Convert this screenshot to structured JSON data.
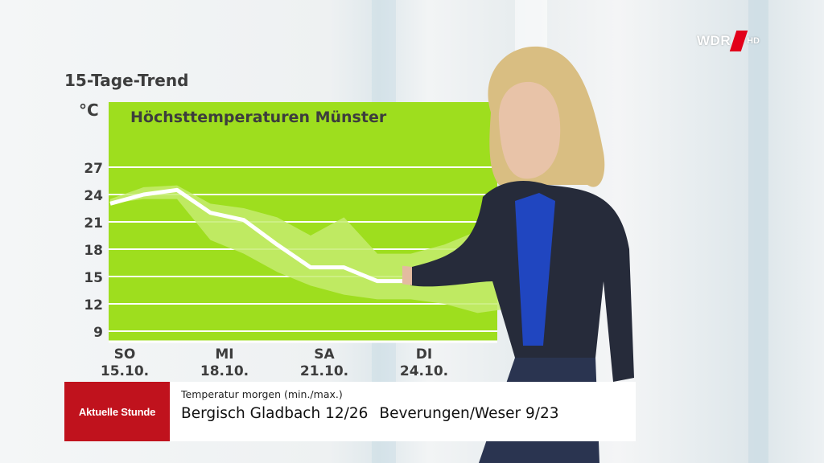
{
  "channel": {
    "logo_text": "WDR",
    "hd_badge": "HD",
    "brand_color": "#e2001a"
  },
  "chart_data": {
    "type": "line",
    "heading": "15-Tage-Trend",
    "title": "Höchsttemperaturen Münster",
    "ylabel": "°C",
    "y_ticks": [
      27,
      24,
      21,
      18,
      15,
      12,
      9
    ],
    "ylim": [
      6,
      30
    ],
    "x_labels": [
      {
        "day": "SO",
        "date": "15.10.",
        "index": 0
      },
      {
        "day": "MI",
        "date": "18.10.",
        "index": 3
      },
      {
        "day": "SA",
        "date": "21.10.",
        "index": 6
      },
      {
        "day": "DI",
        "date": "24.10.",
        "index": 9
      }
    ],
    "series": [
      {
        "role": "mean",
        "values": [
          23,
          24,
          24.5,
          22,
          21.2,
          18.5,
          16,
          16,
          14.5,
          14.5,
          15.2,
          15.7,
          16,
          16.5
        ]
      },
      {
        "role": "upper",
        "values": [
          23.5,
          24.8,
          25,
          23,
          22.5,
          21.5,
          19.5,
          21.5,
          17.5,
          17.5,
          18.5,
          20,
          20,
          20
        ]
      },
      {
        "role": "lower",
        "values": [
          23,
          23.5,
          23.5,
          19,
          17.5,
          15.5,
          14,
          13,
          12.5,
          12.5,
          12,
          11,
          11.5,
          12
        ]
      }
    ],
    "colors": {
      "panel": "#9ede1e",
      "band": "#c4ec6f",
      "line": "#ffffff",
      "grid": "#ffffff",
      "text": "#3d3d3d"
    },
    "grid": true
  },
  "lower_third": {
    "brand": "Aktuelle Stunde",
    "brand_color": "#c0121d",
    "subtitle": "Temperatur morgen (min./max.)",
    "cities": [
      "Bergisch Gladbach 12/26",
      "Beverungen/Weser 9/23"
    ]
  }
}
